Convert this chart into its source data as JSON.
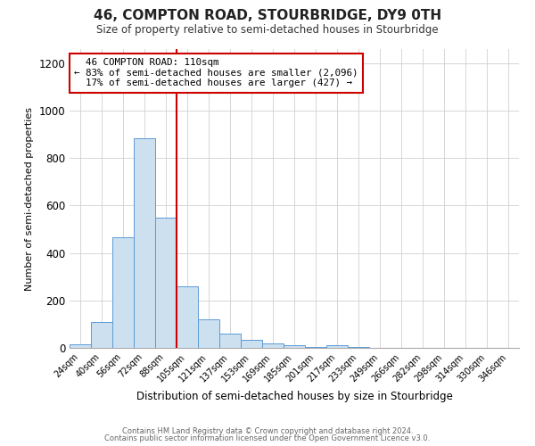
{
  "title": "46, COMPTON ROAD, STOURBRIDGE, DY9 0TH",
  "subtitle": "Size of property relative to semi-detached houses in Stourbridge",
  "xlabel": "Distribution of semi-detached houses by size in Stourbridge",
  "ylabel": "Number of semi-detached properties",
  "bar_color": "#cce0f0",
  "bar_edge_color": "#5b9bd5",
  "bin_labels": [
    "24sqm",
    "40sqm",
    "56sqm",
    "72sqm",
    "88sqm",
    "105sqm",
    "121sqm",
    "137sqm",
    "153sqm",
    "169sqm",
    "185sqm",
    "201sqm",
    "217sqm",
    "233sqm",
    "249sqm",
    "266sqm",
    "282sqm",
    "298sqm",
    "314sqm",
    "330sqm",
    "346sqm"
  ],
  "bin_values": [
    15,
    110,
    465,
    885,
    550,
    260,
    120,
    62,
    32,
    18,
    10,
    5,
    10,
    2,
    0,
    0,
    0,
    0,
    0,
    0,
    0
  ],
  "ylim": [
    0,
    1260
  ],
  "yticks": [
    0,
    200,
    400,
    600,
    800,
    1000,
    1200
  ],
  "property_label": "46 COMPTON ROAD: 110sqm",
  "smaller_pct": 83,
  "smaller_count": 2096,
  "larger_pct": 17,
  "larger_count": 427,
  "vline_x": 4.5,
  "vline_color": "#cc0000",
  "annotation_box_color": "#ffffff",
  "annotation_box_edge": "#cc0000",
  "footer_line1": "Contains HM Land Registry data © Crown copyright and database right 2024.",
  "footer_line2": "Contains public sector information licensed under the Open Government Licence v3.0.",
  "background_color": "#ffffff",
  "grid_color": "#d0d0d0"
}
